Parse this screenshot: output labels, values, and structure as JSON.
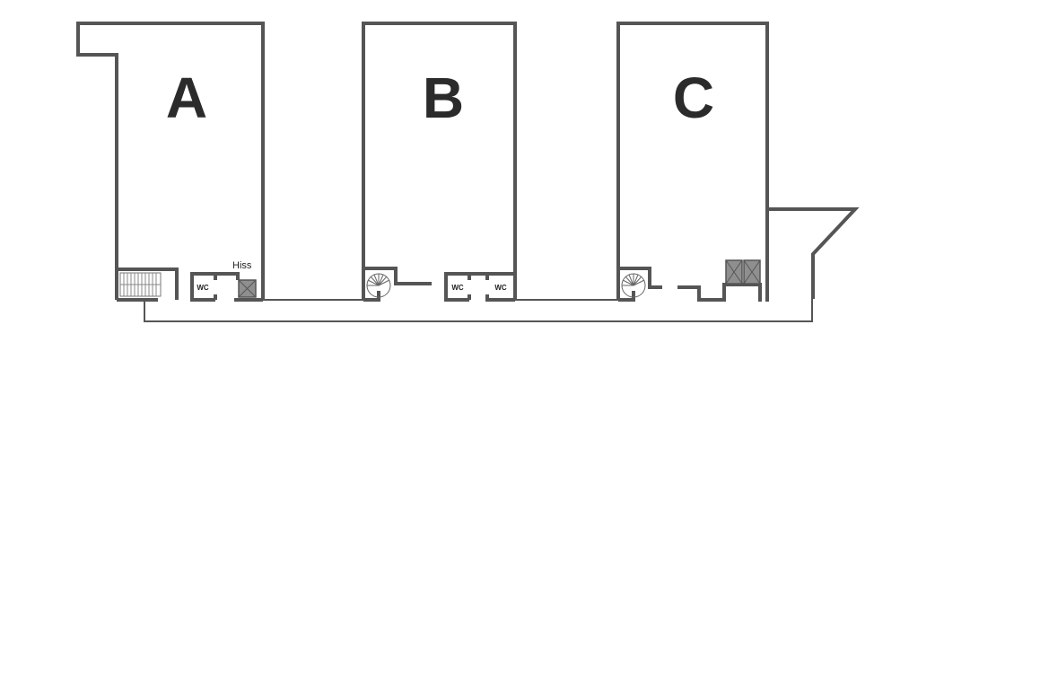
{
  "units": [
    {
      "label": "A"
    },
    {
      "label": "B"
    },
    {
      "label": "C"
    }
  ],
  "rooms": {
    "wc_label": "WC",
    "lift_label": "Hiss"
  },
  "colors": {
    "wall": "#555555",
    "label": "#2b2b2b",
    "lift_fill": "#8f8f8f"
  }
}
